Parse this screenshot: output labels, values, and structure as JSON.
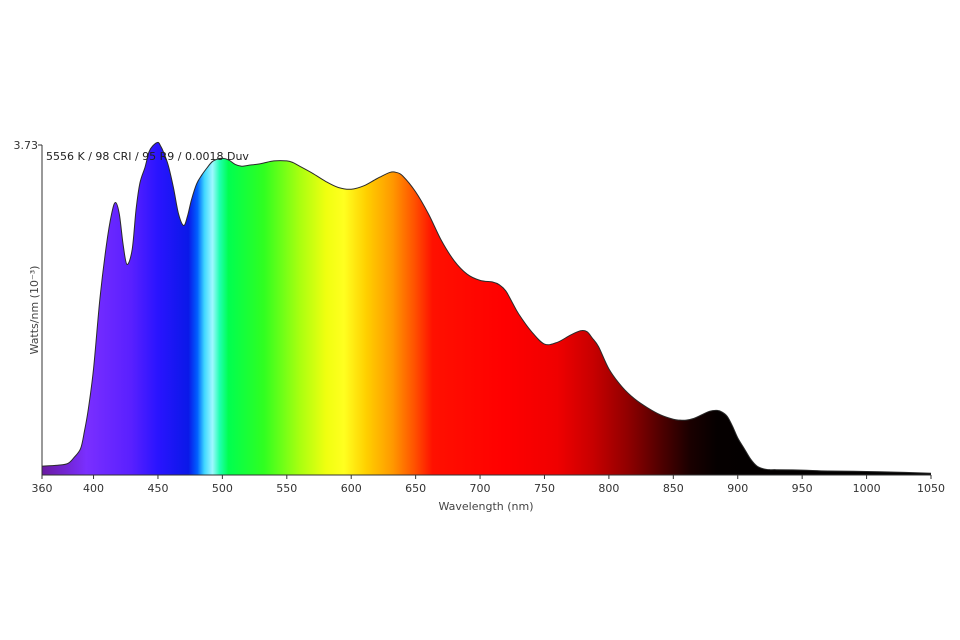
{
  "chart_data": {
    "type": "area",
    "annotation": "5556 K / 98 CRI / 95 R9 / 0.0018 Duv",
    "xlabel": "Wavelength (nm)",
    "ylabel": "Watts/nm (10⁻³)",
    "xlim": [
      360,
      1050
    ],
    "ylim": [
      0,
      3.73
    ],
    "y_tick_labels": [
      "3.73"
    ],
    "x_ticks": [
      360,
      400,
      450,
      500,
      550,
      600,
      650,
      700,
      750,
      800,
      850,
      900,
      950,
      1000,
      1050
    ],
    "grid": false,
    "series": [
      {
        "x": [
          360,
          372,
          380,
          385,
          390,
          393,
          396,
          400,
          405,
          410,
          414,
          417,
          420,
          423,
          426,
          430,
          433,
          436,
          440,
          443,
          446,
          450,
          452,
          454,
          458,
          462,
          466,
          470,
          473,
          476,
          480,
          484,
          488,
          492,
          496,
          500,
          505,
          510,
          515,
          520,
          530,
          540,
          550,
          555,
          560,
          570,
          580,
          590,
          600,
          610,
          620,
          630,
          635,
          640,
          650,
          660,
          670,
          680,
          690,
          700,
          710,
          715,
          720,
          725,
          730,
          740,
          750,
          760,
          770,
          778,
          783,
          787,
          792,
          800,
          810,
          820,
          830,
          840,
          850,
          855,
          860,
          866,
          872,
          878,
          884,
          888,
          892,
          896,
          900,
          905,
          910,
          915,
          920,
          925,
          930,
          950,
          970,
          1000,
          1030,
          1050
        ],
        "y": [
          0.1,
          0.11,
          0.13,
          0.2,
          0.3,
          0.5,
          0.75,
          1.2,
          2.0,
          2.6,
          2.95,
          3.08,
          2.95,
          2.6,
          2.38,
          2.55,
          3.0,
          3.3,
          3.48,
          3.65,
          3.72,
          3.76,
          3.72,
          3.66,
          3.5,
          3.25,
          2.95,
          2.82,
          2.93,
          3.11,
          3.29,
          3.39,
          3.47,
          3.54,
          3.57,
          3.58,
          3.56,
          3.51,
          3.49,
          3.5,
          3.52,
          3.55,
          3.55,
          3.53,
          3.49,
          3.41,
          3.32,
          3.25,
          3.23,
          3.27,
          3.35,
          3.42,
          3.42,
          3.38,
          3.2,
          2.95,
          2.65,
          2.42,
          2.27,
          2.2,
          2.18,
          2.15,
          2.08,
          1.95,
          1.82,
          1.62,
          1.48,
          1.5,
          1.58,
          1.63,
          1.62,
          1.55,
          1.45,
          1.2,
          1.0,
          0.86,
          0.76,
          0.68,
          0.63,
          0.62,
          0.62,
          0.64,
          0.68,
          0.72,
          0.73,
          0.71,
          0.66,
          0.55,
          0.42,
          0.3,
          0.18,
          0.1,
          0.07,
          0.06,
          0.06,
          0.055,
          0.045,
          0.04,
          0.03,
          0.02
        ]
      }
    ],
    "fill": "visible spectrum color gradient (violet → blue → cyan → green → yellow → orange → red → black in the infrared)"
  }
}
